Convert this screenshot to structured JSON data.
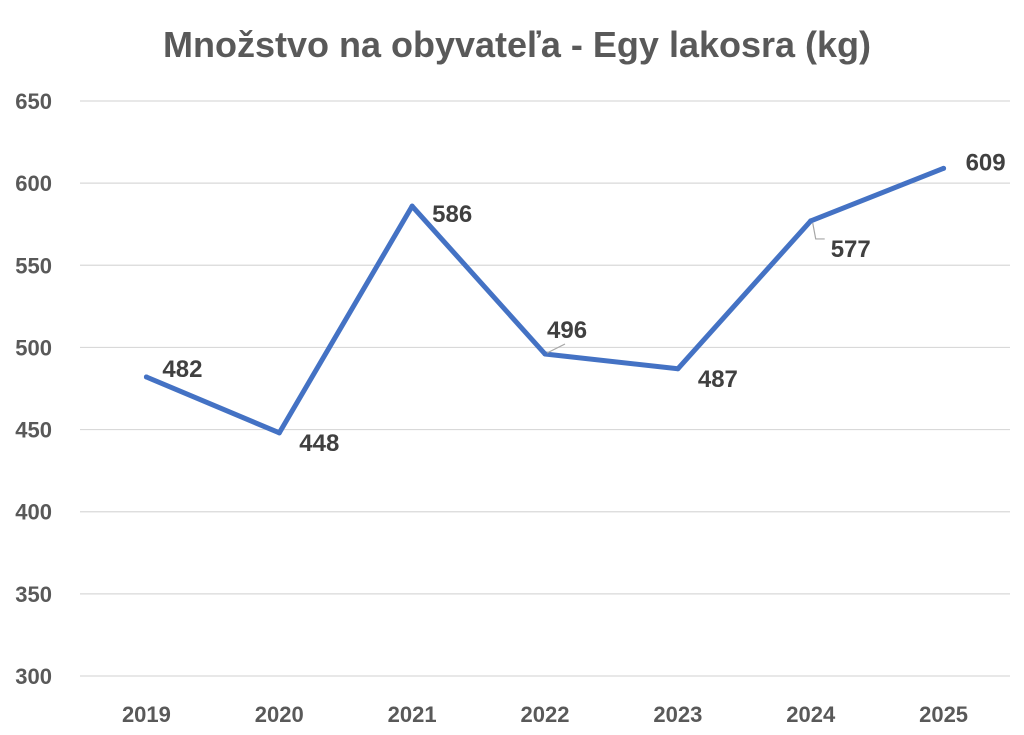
{
  "chart_data": {
    "type": "line",
    "title": "Množstvo na obyvateľa - Egy lakosra (kg)",
    "categories": [
      "2019",
      "2020",
      "2021",
      "2022",
      "2023",
      "2024",
      "2025"
    ],
    "series": [
      {
        "values": [
          482,
          448,
          586,
          496,
          487,
          577,
          609
        ],
        "color": "#4472c4"
      }
    ],
    "yticks": [
      "300",
      "350",
      "400",
      "450",
      "500",
      "550",
      "600",
      "650"
    ],
    "data_labels": [
      "482",
      "448",
      "586",
      "496",
      "487",
      "577",
      "609"
    ],
    "ylim": [
      300,
      650
    ],
    "grid": true,
    "legend": "none"
  }
}
